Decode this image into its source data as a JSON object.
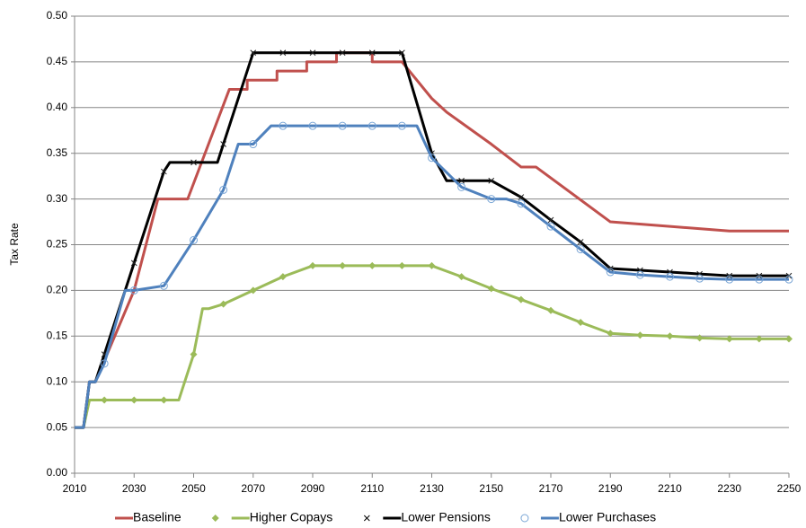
{
  "chart_data": {
    "type": "line",
    "y_label": "Tax  Rate",
    "xlim": [
      2010,
      2250
    ],
    "xticks": [
      2010,
      2030,
      2050,
      2070,
      2090,
      2110,
      2130,
      2150,
      2170,
      2190,
      2210,
      2230,
      2250
    ],
    "ylim": [
      0,
      0.5
    ],
    "yticks": [
      {
        "value": 0,
        "label": "0.00"
      },
      {
        "value": 0.05,
        "label": "0.05"
      },
      {
        "value": 0.1,
        "label": "0.10"
      },
      {
        "value": 0.15,
        "label": "0.15"
      },
      {
        "value": 0.2,
        "label": "0.20"
      },
      {
        "value": 0.25,
        "label": "0.25"
      },
      {
        "value": 0.3,
        "label": "0.30"
      },
      {
        "value": 0.35,
        "label": "0.35"
      },
      {
        "value": 0.4,
        "label": "0.40"
      },
      {
        "value": 0.45,
        "label": "0.45"
      },
      {
        "value": 0.5,
        "label": "0.50"
      }
    ],
    "grid": true,
    "legend": "bottom",
    "series": [
      {
        "name": "Baseline",
        "color": "#c0504d",
        "marker": null,
        "x": [
          2010,
          2013,
          2015,
          2017,
          2030,
          2038,
          2048,
          2062,
          2068,
          2068,
          2078,
          2078,
          2088,
          2088,
          2098,
          2098,
          2110,
          2110,
          2120,
          2130,
          2135,
          2150,
          2160,
          2165,
          2190,
          2210,
          2230,
          2250
        ],
        "values": [
          0.05,
          0.05,
          0.1,
          0.1,
          0.2,
          0.3,
          0.3,
          0.42,
          0.42,
          0.43,
          0.43,
          0.44,
          0.44,
          0.45,
          0.45,
          0.46,
          0.46,
          0.45,
          0.45,
          0.41,
          0.395,
          0.36,
          0.335,
          0.335,
          0.275,
          0.27,
          0.265,
          0.265
        ]
      },
      {
        "name": "Higher Copays",
        "color": "#9bbb59",
        "marker": "diamond",
        "x": [
          2010,
          2013,
          2015,
          2020,
          2030,
          2040,
          2045,
          2050,
          2053,
          2055,
          2060,
          2070,
          2080,
          2090,
          2100,
          2110,
          2120,
          2130,
          2140,
          2150,
          2160,
          2170,
          2180,
          2190,
          2200,
          2210,
          2220,
          2230,
          2240,
          2250
        ],
        "values": [
          0.05,
          0.05,
          0.08,
          0.08,
          0.08,
          0.08,
          0.08,
          0.13,
          0.18,
          0.18,
          0.185,
          0.2,
          0.215,
          0.227,
          0.227,
          0.227,
          0.227,
          0.227,
          0.215,
          0.202,
          0.19,
          0.178,
          0.165,
          0.153,
          0.151,
          0.15,
          0.148,
          0.147,
          0.147,
          0.147
        ]
      },
      {
        "name": "Lower Pensions",
        "color": "#000000",
        "marker": "x",
        "x": [
          2010,
          2013,
          2015,
          2017,
          2020,
          2030,
          2040,
          2042,
          2050,
          2058,
          2060,
          2070,
          2080,
          2090,
          2100,
          2110,
          2120,
          2130,
          2135,
          2140,
          2150,
          2160,
          2170,
          2180,
          2190,
          2200,
          2210,
          2220,
          2230,
          2240,
          2250
        ],
        "values": [
          0.05,
          0.05,
          0.1,
          0.1,
          0.13,
          0.23,
          0.33,
          0.34,
          0.34,
          0.34,
          0.36,
          0.46,
          0.46,
          0.46,
          0.46,
          0.46,
          0.46,
          0.35,
          0.32,
          0.32,
          0.32,
          0.302,
          0.277,
          0.253,
          0.224,
          0.222,
          0.22,
          0.218,
          0.216,
          0.216,
          0.216
        ]
      },
      {
        "name": "Lower Purchases",
        "color": "#4f81bd",
        "marker": "circle",
        "x": [
          2010,
          2013,
          2015,
          2017,
          2020,
          2027,
          2030,
          2040,
          2050,
          2060,
          2065,
          2070,
          2076,
          2080,
          2090,
          2100,
          2110,
          2120,
          2125,
          2130,
          2140,
          2150,
          2155,
          2160,
          2170,
          2180,
          2190,
          2200,
          2210,
          2220,
          2230,
          2240,
          2250
        ],
        "values": [
          0.05,
          0.05,
          0.1,
          0.1,
          0.12,
          0.2,
          0.2,
          0.205,
          0.255,
          0.31,
          0.36,
          0.36,
          0.38,
          0.38,
          0.38,
          0.38,
          0.38,
          0.38,
          0.38,
          0.345,
          0.313,
          0.3,
          0.3,
          0.295,
          0.27,
          0.245,
          0.22,
          0.217,
          0.215,
          0.213,
          0.212,
          0.212,
          0.212
        ]
      }
    ]
  }
}
